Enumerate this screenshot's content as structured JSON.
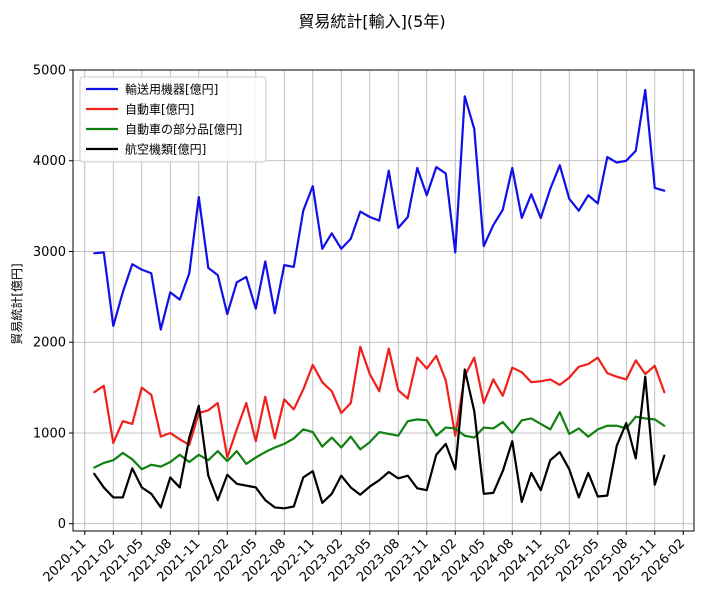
{
  "chart_data": {
    "type": "line",
    "title": "貿易統計[輸入](5年)",
    "xlabel": "",
    "ylabel": "貿易統計[億円]",
    "ylim": [
      -80,
      5000
    ],
    "yticks": [
      0,
      1000,
      2000,
      3000,
      4000,
      5000
    ],
    "xtick_labels": [
      "2020-11",
      "2021-02",
      "2021-05",
      "2021-08",
      "2021-11",
      "2022-02",
      "2022-05",
      "2022-08",
      "2022-11",
      "2023-02",
      "2023-05",
      "2023-08",
      "2023-11",
      "2024-02",
      "2024-05",
      "2024-08",
      "2024-11",
      "2025-02",
      "2025-05",
      "2025-08",
      "2025-11",
      "2026-02"
    ],
    "x_start": "2020-12",
    "x_end": "2025-11",
    "grid": true,
    "legend_position": "top-left",
    "series": [
      {
        "name": "輸送用機器[億円]",
        "color": "#1010e8",
        "values": [
          2980,
          2990,
          2180,
          2550,
          2860,
          2800,
          2760,
          2140,
          2550,
          2470,
          2760,
          3600,
          2820,
          2740,
          2310,
          2660,
          2720,
          2370,
          2890,
          2320,
          2850,
          2830,
          3450,
          3720,
          3030,
          3200,
          3030,
          3140,
          3440,
          3380,
          3340,
          3890,
          3260,
          3380,
          3920,
          3620,
          3930,
          3860,
          2990,
          4710,
          4350,
          3060,
          3290,
          3460,
          3920,
          3370,
          3630,
          3370,
          3690,
          3950,
          3580,
          3450,
          3620,
          3530,
          4040,
          3980,
          4000,
          4110,
          4780,
          3700,
          3670
        ]
      },
      {
        "name": "自動車[億円]",
        "color": "#f0201a",
        "values": [
          1450,
          1520,
          890,
          1130,
          1100,
          1500,
          1420,
          960,
          1000,
          930,
          870,
          1220,
          1250,
          1330,
          730,
          1040,
          1330,
          910,
          1400,
          940,
          1370,
          1260,
          1480,
          1750,
          1560,
          1460,
          1220,
          1330,
          1950,
          1650,
          1460,
          1930,
          1470,
          1380,
          1830,
          1710,
          1850,
          1580,
          970,
          1630,
          1830,
          1330,
          1590,
          1410,
          1720,
          1670,
          1560,
          1570,
          1590,
          1530,
          1610,
          1730,
          1760,
          1830,
          1660,
          1620,
          1590,
          1800,
          1650,
          1740,
          1450
        ]
      },
      {
        "name": "自動車の部分品[億円]",
        "color": "#108010",
        "values": [
          620,
          670,
          700,
          780,
          710,
          600,
          650,
          630,
          680,
          760,
          680,
          760,
          700,
          800,
          690,
          800,
          660,
          730,
          790,
          840,
          880,
          940,
          1040,
          1010,
          850,
          950,
          840,
          960,
          820,
          900,
          1010,
          990,
          970,
          1130,
          1150,
          1140,
          970,
          1060,
          1050,
          970,
          950,
          1060,
          1050,
          1120,
          1000,
          1140,
          1160,
          1100,
          1040,
          1230,
          990,
          1050,
          960,
          1040,
          1080,
          1080,
          1050,
          1180,
          1160,
          1150,
          1080
        ]
      },
      {
        "name": "航空機類[億円]",
        "color": "#000000",
        "values": [
          550,
          400,
          290,
          290,
          610,
          400,
          330,
          180,
          510,
          400,
          950,
          1300,
          530,
          260,
          540,
          440,
          420,
          400,
          260,
          180,
          170,
          190,
          510,
          580,
          230,
          330,
          530,
          400,
          320,
          410,
          480,
          570,
          500,
          530,
          390,
          370,
          760,
          880,
          600,
          1700,
          1240,
          330,
          340,
          580,
          910,
          240,
          560,
          370,
          700,
          790,
          600,
          290,
          560,
          300,
          310,
          860,
          1110,
          720,
          1620,
          430,
          750
        ]
      }
    ]
  }
}
